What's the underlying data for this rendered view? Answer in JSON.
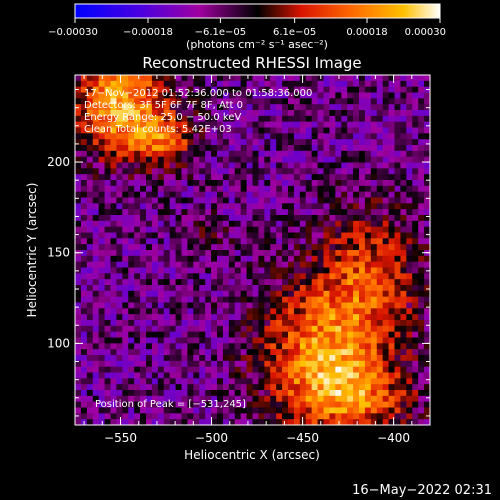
{
  "chart_data": {
    "type": "heatmap",
    "title": "Reconstructed RHESSI Image",
    "xlabel": "Heliocentric X (arcsec)",
    "ylabel": "Heliocentric Y (arcsec)",
    "xlim": [
      -575,
      -380
    ],
    "ylim": [
      55,
      248
    ],
    "x_ticks": [
      {
        "value": -550,
        "label": "−550"
      },
      {
        "value": -500,
        "label": "−500"
      },
      {
        "value": -450,
        "label": "−450"
      },
      {
        "value": -400,
        "label": "−400"
      }
    ],
    "y_ticks": [
      {
        "value": 100,
        "label": "100"
      },
      {
        "value": 150,
        "label": "150"
      },
      {
        "value": 200,
        "label": "200"
      }
    ],
    "colorbar": {
      "range": [
        -0.0003,
        0.0003
      ],
      "ticks": [
        {
          "value": -0.0003,
          "label": "−0.00030"
        },
        {
          "value": -0.00018,
          "label": "−0.00018"
        },
        {
          "value": -6.1e-05,
          "label": "−6.1e−05"
        },
        {
          "value": 6.1e-05,
          "label": "6.1e−05"
        },
        {
          "value": 0.00018,
          "label": "0.00018"
        },
        {
          "value": 0.0003,
          "label": "0.00030"
        }
      ],
      "units": "(photons cm⁻² s⁻¹ asec⁻²)",
      "colors": [
        "#0000ff",
        "#5a00d8",
        "#a000a0",
        "#000000",
        "#d81400",
        "#ff6a00",
        "#ffc000",
        "#ffffff"
      ]
    },
    "annotations": [
      "17−Nov−2012 01:52:36.000 to 01:58:36.000",
      "Detectors: 3F 5F 6F 7F 8F, Att 0",
      "Energy Range: 25.0 − 50.0 keV",
      "Clean    Total counts: 5.42E+03"
    ],
    "peak_label": "Position of Peak = [−531,245]",
    "peak_position": [
      -531,
      245
    ],
    "sources": [
      {
        "x": -550,
        "y": 232,
        "amp": 0.00032,
        "sx": 18,
        "sy": 20
      },
      {
        "x": -525,
        "y": 212,
        "amp": 0.00018,
        "sx": 12,
        "sy": 10
      },
      {
        "x": -438,
        "y": 95,
        "amp": 0.00028,
        "sx": 24,
        "sy": 28
      },
      {
        "x": -412,
        "y": 140,
        "amp": 0.00018,
        "sx": 18,
        "sy": 24
      },
      {
        "x": -420,
        "y": 70,
        "amp": 0.00016,
        "sx": 22,
        "sy": 14
      },
      {
        "x": -505,
        "y": 160,
        "amp": 7e-05,
        "sx": 10,
        "sy": 8
      }
    ]
  },
  "timestamp": "16−May−2022 02:31"
}
